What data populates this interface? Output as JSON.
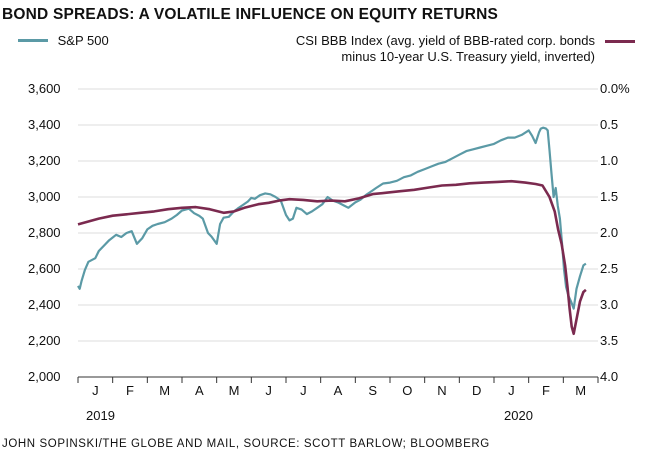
{
  "title": "BOND SPREADS: A VOLATILE INFLUENCE ON EQUITY RETURNS",
  "source": "JOHN SOPINSKI/THE GLOBE AND MAIL, SOURCE: SCOTT BARLOW; BLOOMBERG",
  "colors": {
    "sp500": "#5b9aa6",
    "csi_bbb": "#7b2a4f",
    "grid": "#dcdcdc",
    "axis": "#333333"
  },
  "chart_data": {
    "type": "line",
    "title": "BOND SPREADS: A VOLATILE INFLUENCE ON EQUITY RETURNS",
    "grid": true,
    "legend_placement": "top",
    "x_labels": [
      "J",
      "F",
      "M",
      "A",
      "M",
      "J",
      "J",
      "A",
      "S",
      "O",
      "N",
      "D",
      "J",
      "F",
      "M"
    ],
    "x_years": [
      "2019",
      "2020"
    ],
    "y_left": {
      "ticks": [
        "2,000",
        "2,200",
        "2,400",
        "2,600",
        "2,800",
        "3,000",
        "3,200",
        "3,400",
        "3,600"
      ],
      "range": [
        2000,
        3600
      ]
    },
    "y_right": {
      "ticks": [
        "0.0%",
        "0.5",
        "1.0",
        "1.5",
        "2.0",
        "2.5",
        "3.0",
        "3.5",
        "4.0"
      ],
      "range": [
        0.0,
        4.0
      ],
      "inverted": true
    },
    "series": [
      {
        "name": "S&P 500",
        "axis": "left",
        "x": [
          0,
          0.05,
          0.1,
          0.2,
          0.3,
          0.5,
          0.6,
          0.75,
          0.9,
          1.0,
          1.1,
          1.25,
          1.4,
          1.55,
          1.7,
          1.85,
          2.0,
          2.15,
          2.3,
          2.5,
          2.7,
          2.85,
          3.0,
          3.2,
          3.35,
          3.5,
          3.6,
          3.75,
          3.85,
          4.0,
          4.1,
          4.2,
          4.35,
          4.5,
          4.6,
          4.75,
          4.9,
          5.0,
          5.1,
          5.25,
          5.4,
          5.55,
          5.7,
          5.85,
          6.0,
          6.1,
          6.2,
          6.3,
          6.45,
          6.6,
          6.75,
          6.9,
          7.05,
          7.2,
          7.35,
          7.5,
          7.65,
          7.8,
          8.0,
          8.15,
          8.3,
          8.45,
          8.6,
          8.8,
          9.0,
          9.2,
          9.4,
          9.6,
          9.8,
          10.0,
          10.2,
          10.4,
          10.6,
          10.8,
          11.0,
          11.2,
          11.4,
          11.6,
          11.8,
          12.0,
          12.2,
          12.4,
          12.6,
          12.8,
          13.0,
          13.1,
          13.2,
          13.3,
          13.35,
          13.42,
          13.5,
          13.55,
          13.6,
          13.66,
          13.72,
          13.78,
          13.84,
          13.9,
          13.96,
          14.02,
          14.08,
          14.15,
          14.22,
          14.3,
          14.38,
          14.48,
          14.58,
          14.65
        ],
        "values": [
          2506,
          2490,
          2532,
          2595,
          2640,
          2660,
          2700,
          2730,
          2760,
          2775,
          2790,
          2778,
          2800,
          2810,
          2740,
          2770,
          2820,
          2840,
          2850,
          2860,
          2880,
          2900,
          2925,
          2935,
          2910,
          2895,
          2880,
          2800,
          2780,
          2740,
          2850,
          2885,
          2890,
          2920,
          2935,
          2955,
          2975,
          2995,
          2990,
          3010,
          3020,
          3015,
          3000,
          2980,
          2900,
          2870,
          2880,
          2940,
          2930,
          2905,
          2920,
          2940,
          2960,
          3000,
          2980,
          2970,
          2955,
          2940,
          2970,
          2985,
          3010,
          3030,
          3050,
          3075,
          3080,
          3090,
          3110,
          3120,
          3140,
          3155,
          3170,
          3185,
          3195,
          3215,
          3235,
          3255,
          3265,
          3275,
          3285,
          3295,
          3315,
          3330,
          3330,
          3345,
          3370,
          3340,
          3300,
          3360,
          3380,
          3385,
          3380,
          3370,
          3260,
          3130,
          3000,
          3050,
          2950,
          2880,
          2750,
          2600,
          2500,
          2450,
          2420,
          2380,
          2490,
          2560,
          2620,
          2630
        ]
      },
      {
        "name": "CSI BBB Index (avg. yield of BBB-rated corp. bonds minus 10-year U.S. Treasury yield, inverted)",
        "axis": "right",
        "x": [
          0,
          0.3,
          0.6,
          1.0,
          1.4,
          1.8,
          2.2,
          2.6,
          3.0,
          3.4,
          3.8,
          4.2,
          4.5,
          4.8,
          5.2,
          5.5,
          5.8,
          6.1,
          6.5,
          6.9,
          7.3,
          7.7,
          8.1,
          8.5,
          8.9,
          9.3,
          9.7,
          10.1,
          10.5,
          10.9,
          11.3,
          11.7,
          12.1,
          12.5,
          12.9,
          13.2,
          13.4,
          13.6,
          13.75,
          13.85,
          13.95,
          14.05,
          14.12,
          14.18,
          14.24,
          14.3,
          14.38,
          14.48,
          14.58,
          14.65
        ],
        "values": [
          1.88,
          1.84,
          1.8,
          1.76,
          1.74,
          1.72,
          1.7,
          1.67,
          1.65,
          1.64,
          1.67,
          1.72,
          1.7,
          1.65,
          1.6,
          1.58,
          1.55,
          1.53,
          1.54,
          1.56,
          1.55,
          1.56,
          1.52,
          1.46,
          1.44,
          1.42,
          1.4,
          1.37,
          1.34,
          1.33,
          1.31,
          1.3,
          1.29,
          1.28,
          1.3,
          1.32,
          1.34,
          1.5,
          1.7,
          1.95,
          2.15,
          2.45,
          2.75,
          3.05,
          3.3,
          3.4,
          3.2,
          2.95,
          2.82,
          2.79
        ]
      }
    ]
  }
}
